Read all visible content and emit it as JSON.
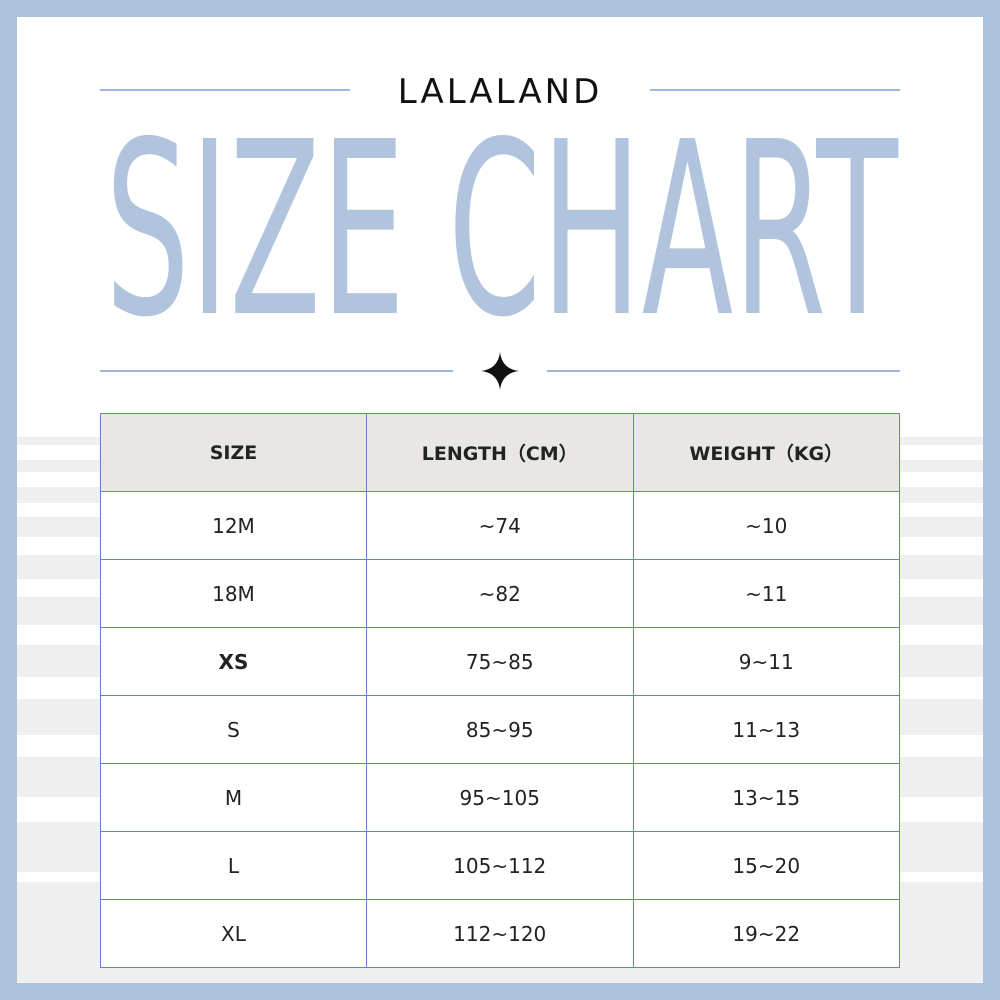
{
  "header": {
    "brand": "LALALAND",
    "title": "SIZE CHART"
  },
  "table": {
    "columns": [
      "SIZE",
      "LENGTH（CM）",
      "WEIGHT（KG）"
    ],
    "rows": [
      [
        "12M",
        "~74",
        "~10"
      ],
      [
        "18M",
        "~82",
        "~11"
      ],
      [
        "XS",
        "75~85",
        "9~11"
      ],
      [
        "S",
        "85~95",
        "11~13"
      ],
      [
        "M",
        "95~105",
        "13~15"
      ],
      [
        "L",
        "105~112",
        "15~20"
      ],
      [
        "XL",
        "112~120",
        "19~22"
      ]
    ]
  }
}
